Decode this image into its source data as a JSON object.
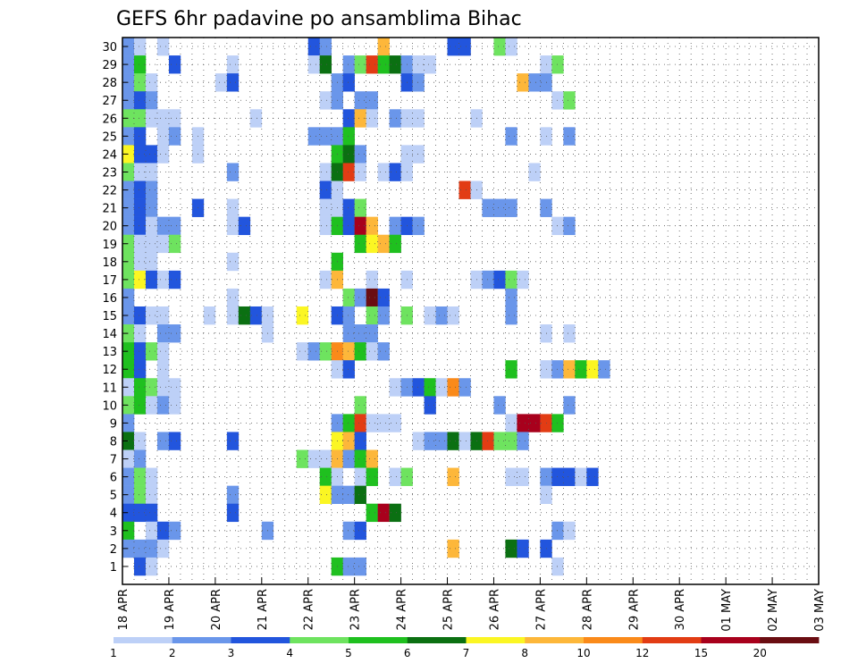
{
  "chart_data": {
    "type": "heatmap",
    "title": "GEFS 6hr padavine po ansamblima Bihac",
    "x_tick_labels": [
      "18 APR",
      "19 APR",
      "20 APR",
      "21 APR",
      "22 APR",
      "23 APR",
      "24 APR",
      "25 APR",
      "26 APR",
      "27 APR",
      "28 APR",
      "29 APR",
      "30 APR",
      "01 MAY",
      "02 MAY",
      "03 MAY"
    ],
    "y_tick_labels": [
      "1",
      "2",
      "3",
      "4",
      "5",
      "6",
      "7",
      "8",
      "9",
      "10",
      "11",
      "12",
      "13",
      "14",
      "15",
      "16",
      "17",
      "18",
      "19",
      "20",
      "21",
      "22",
      "23",
      "24",
      "25",
      "26",
      "27",
      "28",
      "29",
      "30"
    ],
    "x_range": [
      "18 APR",
      "03 MAY"
    ],
    "y_range": [
      0,
      30
    ],
    "time_step_hours": 6,
    "grid": true,
    "legend_position": "bottom",
    "color_scale": {
      "labels": [
        "1",
        "2",
        "3",
        "4",
        "5",
        "6",
        "7",
        "8",
        "10",
        "12",
        "15",
        "20"
      ],
      "colors": [
        "#bdd0f7",
        "#6a96ea",
        "#2255dd",
        "#6ee35f",
        "#1fc01f",
        "#0b7012",
        "#fbf623",
        "#fdb73a",
        "#fa8a1a",
        "#e23c14",
        "#a8001c",
        "#6a0d12"
      ]
    },
    "cells": [
      [
        30,
        0,
        1
      ],
      [
        30,
        1,
        0
      ],
      [
        30,
        3,
        0
      ],
      [
        30,
        16,
        2
      ],
      [
        30,
        17,
        1
      ],
      [
        30,
        22,
        7
      ],
      [
        30,
        28,
        2
      ],
      [
        30,
        29,
        2
      ],
      [
        30,
        32,
        3
      ],
      [
        30,
        33,
        0
      ],
      [
        29,
        0,
        1
      ],
      [
        29,
        1,
        4
      ],
      [
        29,
        4,
        2
      ],
      [
        29,
        9,
        0
      ],
      [
        29,
        16,
        0
      ],
      [
        29,
        17,
        5
      ],
      [
        29,
        19,
        1
      ],
      [
        29,
        20,
        3
      ],
      [
        29,
        21,
        9
      ],
      [
        29,
        22,
        4
      ],
      [
        29,
        23,
        5
      ],
      [
        29,
        24,
        1
      ],
      [
        29,
        25,
        0
      ],
      [
        29,
        26,
        0
      ],
      [
        29,
        36,
        0
      ],
      [
        29,
        37,
        3
      ],
      [
        28,
        0,
        1
      ],
      [
        28,
        1,
        3
      ],
      [
        28,
        2,
        0
      ],
      [
        28,
        8,
        0
      ],
      [
        28,
        9,
        2
      ],
      [
        28,
        18,
        1
      ],
      [
        28,
        19,
        2
      ],
      [
        28,
        24,
        2
      ],
      [
        28,
        25,
        1
      ],
      [
        28,
        34,
        7
      ],
      [
        28,
        35,
        1
      ],
      [
        28,
        36,
        1
      ],
      [
        27,
        0,
        1
      ],
      [
        27,
        1,
        2
      ],
      [
        27,
        2,
        1
      ],
      [
        27,
        17,
        0
      ],
      [
        27,
        18,
        1
      ],
      [
        27,
        20,
        1
      ],
      [
        27,
        21,
        1
      ],
      [
        27,
        37,
        0
      ],
      [
        27,
        38,
        3
      ],
      [
        26,
        0,
        3
      ],
      [
        26,
        1,
        3
      ],
      [
        26,
        2,
        0
      ],
      [
        26,
        3,
        0
      ],
      [
        26,
        4,
        0
      ],
      [
        26,
        11,
        0
      ],
      [
        26,
        19,
        2
      ],
      [
        26,
        20,
        7
      ],
      [
        26,
        21,
        0
      ],
      [
        26,
        23,
        1
      ],
      [
        26,
        24,
        0
      ],
      [
        26,
        25,
        0
      ],
      [
        26,
        30,
        0
      ],
      [
        25,
        0,
        1
      ],
      [
        25,
        1,
        2
      ],
      [
        25,
        3,
        0
      ],
      [
        25,
        4,
        1
      ],
      [
        25,
        6,
        0
      ],
      [
        25,
        16,
        1
      ],
      [
        25,
        17,
        1
      ],
      [
        25,
        18,
        1
      ],
      [
        25,
        19,
        4
      ],
      [
        25,
        33,
        1
      ],
      [
        25,
        36,
        0
      ],
      [
        25,
        38,
        1
      ],
      [
        24,
        0,
        6
      ],
      [
        24,
        1,
        2
      ],
      [
        24,
        2,
        2
      ],
      [
        24,
        3,
        0
      ],
      [
        24,
        6,
        0
      ],
      [
        24,
        18,
        4
      ],
      [
        24,
        19,
        5
      ],
      [
        24,
        20,
        1
      ],
      [
        24,
        24,
        0
      ],
      [
        24,
        25,
        0
      ],
      [
        23,
        0,
        3
      ],
      [
        23,
        1,
        0
      ],
      [
        23,
        2,
        0
      ],
      [
        23,
        9,
        1
      ],
      [
        23,
        17,
        0
      ],
      [
        23,
        18,
        5
      ],
      [
        23,
        19,
        9
      ],
      [
        23,
        20,
        0
      ],
      [
        23,
        22,
        0
      ],
      [
        23,
        23,
        2
      ],
      [
        23,
        24,
        0
      ],
      [
        23,
        35,
        0
      ],
      [
        22,
        0,
        1
      ],
      [
        22,
        1,
        2
      ],
      [
        22,
        2,
        1
      ],
      [
        22,
        17,
        2
      ],
      [
        22,
        18,
        0
      ],
      [
        22,
        29,
        9
      ],
      [
        22,
        30,
        0
      ],
      [
        21,
        0,
        1
      ],
      [
        21,
        1,
        2
      ],
      [
        21,
        2,
        1
      ],
      [
        21,
        6,
        2
      ],
      [
        21,
        9,
        0
      ],
      [
        21,
        17,
        0
      ],
      [
        21,
        18,
        0
      ],
      [
        21,
        19,
        2
      ],
      [
        21,
        20,
        3
      ],
      [
        21,
        31,
        1
      ],
      [
        21,
        32,
        1
      ],
      [
        21,
        33,
        1
      ],
      [
        21,
        36,
        1
      ],
      [
        20,
        0,
        1
      ],
      [
        20,
        1,
        2
      ],
      [
        20,
        2,
        0
      ],
      [
        20,
        3,
        1
      ],
      [
        20,
        4,
        1
      ],
      [
        20,
        9,
        0
      ],
      [
        20,
        10,
        2
      ],
      [
        20,
        17,
        0
      ],
      [
        20,
        18,
        4
      ],
      [
        20,
        19,
        2
      ],
      [
        20,
        20,
        10
      ],
      [
        20,
        21,
        7
      ],
      [
        20,
        23,
        1
      ],
      [
        20,
        24,
        2
      ],
      [
        20,
        25,
        1
      ],
      [
        20,
        37,
        0
      ],
      [
        20,
        38,
        1
      ],
      [
        19,
        0,
        3
      ],
      [
        19,
        1,
        0
      ],
      [
        19,
        2,
        0
      ],
      [
        19,
        3,
        0
      ],
      [
        19,
        4,
        3
      ],
      [
        19,
        20,
        4
      ],
      [
        19,
        21,
        6
      ],
      [
        19,
        22,
        7
      ],
      [
        19,
        23,
        4
      ],
      [
        18,
        0,
        3
      ],
      [
        18,
        1,
        0
      ],
      [
        18,
        2,
        0
      ],
      [
        18,
        9,
        0
      ],
      [
        18,
        18,
        4
      ],
      [
        17,
        0,
        3
      ],
      [
        17,
        1,
        6
      ],
      [
        17,
        2,
        2
      ],
      [
        17,
        3,
        0
      ],
      [
        17,
        4,
        2
      ],
      [
        17,
        17,
        0
      ],
      [
        17,
        18,
        7
      ],
      [
        17,
        21,
        0
      ],
      [
        17,
        24,
        0
      ],
      [
        17,
        30,
        0
      ],
      [
        17,
        31,
        1
      ],
      [
        17,
        32,
        2
      ],
      [
        17,
        33,
        3
      ],
      [
        17,
        34,
        0
      ],
      [
        16,
        0,
        1
      ],
      [
        16,
        9,
        0
      ],
      [
        16,
        19,
        3
      ],
      [
        16,
        20,
        1
      ],
      [
        16,
        21,
        11
      ],
      [
        16,
        22,
        2
      ],
      [
        16,
        33,
        1
      ],
      [
        15,
        0,
        1
      ],
      [
        15,
        1,
        2
      ],
      [
        15,
        2,
        0
      ],
      [
        15,
        3,
        0
      ],
      [
        15,
        7,
        0
      ],
      [
        15,
        9,
        0
      ],
      [
        15,
        10,
        5
      ],
      [
        15,
        11,
        2
      ],
      [
        15,
        12,
        0
      ],
      [
        15,
        15,
        6
      ],
      [
        15,
        18,
        2
      ],
      [
        15,
        19,
        1
      ],
      [
        15,
        21,
        3
      ],
      [
        15,
        22,
        1
      ],
      [
        15,
        24,
        3
      ],
      [
        15,
        26,
        0
      ],
      [
        15,
        27,
        1
      ],
      [
        15,
        28,
        0
      ],
      [
        15,
        33,
        1
      ],
      [
        14,
        0,
        3
      ],
      [
        14,
        1,
        0
      ],
      [
        14,
        3,
        1
      ],
      [
        14,
        4,
        1
      ],
      [
        14,
        12,
        0
      ],
      [
        14,
        19,
        1
      ],
      [
        14,
        20,
        1
      ],
      [
        14,
        21,
        1
      ],
      [
        14,
        36,
        0
      ],
      [
        14,
        38,
        0
      ],
      [
        13,
        0,
        4
      ],
      [
        13,
        1,
        2
      ],
      [
        13,
        2,
        3
      ],
      [
        13,
        3,
        0
      ],
      [
        13,
        15,
        0
      ],
      [
        13,
        16,
        1
      ],
      [
        13,
        17,
        3
      ],
      [
        13,
        18,
        8
      ],
      [
        13,
        19,
        7
      ],
      [
        13,
        20,
        4
      ],
      [
        13,
        21,
        0
      ],
      [
        13,
        22,
        1
      ],
      [
        12,
        0,
        4
      ],
      [
        12,
        1,
        2
      ],
      [
        12,
        3,
        0
      ],
      [
        12,
        18,
        0
      ],
      [
        12,
        19,
        2
      ],
      [
        12,
        33,
        4
      ],
      [
        12,
        36,
        0
      ],
      [
        12,
        37,
        1
      ],
      [
        12,
        38,
        7
      ],
      [
        12,
        39,
        4
      ],
      [
        12,
        40,
        6
      ],
      [
        12,
        41,
        1
      ],
      [
        11,
        0,
        0
      ],
      [
        11,
        1,
        4
      ],
      [
        11,
        2,
        3
      ],
      [
        11,
        3,
        0
      ],
      [
        11,
        4,
        0
      ],
      [
        11,
        23,
        0
      ],
      [
        11,
        24,
        1
      ],
      [
        11,
        25,
        2
      ],
      [
        11,
        26,
        4
      ],
      [
        11,
        27,
        0
      ],
      [
        11,
        28,
        8
      ],
      [
        11,
        29,
        1
      ],
      [
        10,
        0,
        3
      ],
      [
        10,
        1,
        4
      ],
      [
        10,
        2,
        0
      ],
      [
        10,
        3,
        1
      ],
      [
        10,
        4,
        0
      ],
      [
        10,
        20,
        3
      ],
      [
        10,
        26,
        2
      ],
      [
        10,
        32,
        1
      ],
      [
        10,
        38,
        1
      ],
      [
        9,
        0,
        1
      ],
      [
        9,
        18,
        1
      ],
      [
        9,
        19,
        4
      ],
      [
        9,
        20,
        9
      ],
      [
        9,
        21,
        0
      ],
      [
        9,
        22,
        0
      ],
      [
        9,
        23,
        0
      ],
      [
        9,
        33,
        0
      ],
      [
        9,
        34,
        10
      ],
      [
        9,
        35,
        10
      ],
      [
        9,
        36,
        9
      ],
      [
        9,
        37,
        4
      ],
      [
        8,
        0,
        5
      ],
      [
        8,
        1,
        0
      ],
      [
        8,
        3,
        1
      ],
      [
        8,
        4,
        2
      ],
      [
        8,
        9,
        2
      ],
      [
        8,
        18,
        6
      ],
      [
        8,
        19,
        7
      ],
      [
        8,
        20,
        2
      ],
      [
        8,
        25,
        0
      ],
      [
        8,
        26,
        1
      ],
      [
        8,
        27,
        1
      ],
      [
        8,
        28,
        5
      ],
      [
        8,
        29,
        0
      ],
      [
        8,
        30,
        5
      ],
      [
        8,
        31,
        9
      ],
      [
        8,
        32,
        3
      ],
      [
        8,
        33,
        3
      ],
      [
        8,
        34,
        1
      ],
      [
        7,
        0,
        0
      ],
      [
        7,
        1,
        1
      ],
      [
        7,
        15,
        3
      ],
      [
        7,
        16,
        0
      ],
      [
        7,
        17,
        0
      ],
      [
        7,
        18,
        7
      ],
      [
        7,
        19,
        1
      ],
      [
        7,
        20,
        4
      ],
      [
        7,
        21,
        7
      ],
      [
        6,
        0,
        1
      ],
      [
        6,
        1,
        3
      ],
      [
        6,
        2,
        0
      ],
      [
        6,
        17,
        4
      ],
      [
        6,
        18,
        0
      ],
      [
        6,
        20,
        0
      ],
      [
        6,
        21,
        4
      ],
      [
        6,
        23,
        0
      ],
      [
        6,
        24,
        3
      ],
      [
        6,
        28,
        7
      ],
      [
        6,
        33,
        0
      ],
      [
        6,
        34,
        0
      ],
      [
        6,
        36,
        1
      ],
      [
        6,
        37,
        2
      ],
      [
        6,
        38,
        2
      ],
      [
        6,
        39,
        0
      ],
      [
        6,
        40,
        2
      ],
      [
        5,
        0,
        1
      ],
      [
        5,
        1,
        3
      ],
      [
        5,
        2,
        0
      ],
      [
        5,
        9,
        1
      ],
      [
        5,
        17,
        6
      ],
      [
        5,
        18,
        1
      ],
      [
        5,
        19,
        1
      ],
      [
        5,
        20,
        5
      ],
      [
        5,
        36,
        0
      ],
      [
        4,
        0,
        2
      ],
      [
        4,
        1,
        2
      ],
      [
        4,
        2,
        2
      ],
      [
        4,
        9,
        2
      ],
      [
        4,
        21,
        4
      ],
      [
        4,
        22,
        10
      ],
      [
        4,
        23,
        5
      ],
      [
        3,
        0,
        4
      ],
      [
        3,
        2,
        0
      ],
      [
        3,
        3,
        2
      ],
      [
        3,
        4,
        1
      ],
      [
        3,
        12,
        1
      ],
      [
        3,
        19,
        1
      ],
      [
        3,
        20,
        2
      ],
      [
        3,
        37,
        1
      ],
      [
        3,
        38,
        0
      ],
      [
        2,
        0,
        1
      ],
      [
        2,
        1,
        1
      ],
      [
        2,
        2,
        1
      ],
      [
        2,
        3,
        0
      ],
      [
        2,
        28,
        7
      ],
      [
        2,
        33,
        5
      ],
      [
        2,
        34,
        2
      ],
      [
        2,
        36,
        2
      ],
      [
        1,
        1,
        2
      ],
      [
        1,
        2,
        0
      ],
      [
        1,
        18,
        4
      ],
      [
        1,
        19,
        1
      ],
      [
        1,
        20,
        1
      ],
      [
        1,
        37,
        0
      ]
    ]
  }
}
